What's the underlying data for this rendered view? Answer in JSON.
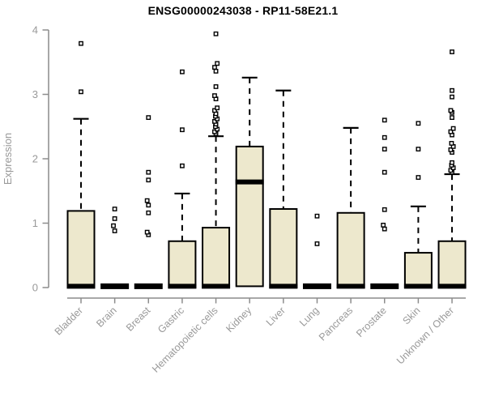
{
  "chart_data": {
    "type": "boxplot",
    "title": "ENSG00000243038 - RP11-58E21.1",
    "ylabel": "Expression",
    "xlabel": "",
    "ylim": [
      0,
      4
    ],
    "yticks": [
      0,
      1,
      2,
      3,
      4
    ],
    "grid": false,
    "legend": "none",
    "categories": [
      "Bladder",
      "Brain",
      "Breast",
      "Gastric",
      "Hematopoietic cells",
      "Kidney",
      "Liver",
      "Lung",
      "Pancreas",
      "Prostate",
      "Skin",
      "Unknown / Other"
    ],
    "boxes": [
      {
        "label": "Bladder",
        "q1": 0,
        "median": 0.02,
        "q3": 1.19,
        "whisker_low": 0,
        "whisker_high": 2.62,
        "outliers": [
          3.04,
          3.79
        ]
      },
      {
        "label": "Brain",
        "q1": 0,
        "median": 0.02,
        "q3": 0.03,
        "whisker_low": 0,
        "whisker_high": 0.03,
        "outliers": [
          0.88,
          0.96,
          1.07,
          1.22
        ]
      },
      {
        "label": "Breast",
        "q1": 0,
        "median": 0.02,
        "q3": 0.03,
        "whisker_low": 0,
        "whisker_high": 0.03,
        "outliers": [
          0.82,
          0.86,
          1.16,
          1.28,
          1.35,
          1.67,
          1.79,
          2.64
        ]
      },
      {
        "label": "Gastric",
        "q1": 0,
        "median": 0.02,
        "q3": 0.72,
        "whisker_low": 0,
        "whisker_high": 1.46,
        "outliers": [
          1.89,
          2.45,
          3.35
        ]
      },
      {
        "label": "Hematopoietic cells",
        "q1": 0,
        "median": 0.02,
        "q3": 0.93,
        "whisker_low": 0,
        "whisker_high": 2.35,
        "outliers": [
          2.39,
          2.42,
          2.46,
          2.5,
          2.54,
          2.58,
          2.62,
          2.66,
          2.7,
          2.75,
          2.79,
          2.93,
          2.98,
          3.12,
          3.36,
          3.42,
          3.48,
          3.94
        ]
      },
      {
        "label": "Kidney",
        "q1": 0.02,
        "median": 1.64,
        "q3": 2.19,
        "whisker_low": 0.02,
        "whisker_high": 3.26,
        "outliers": []
      },
      {
        "label": "Liver",
        "q1": 0,
        "median": 0.02,
        "q3": 1.22,
        "whisker_low": 0,
        "whisker_high": 3.06,
        "outliers": []
      },
      {
        "label": "Lung",
        "q1": 0,
        "median": 0.02,
        "q3": 0.03,
        "whisker_low": 0,
        "whisker_high": 0.03,
        "outliers": [
          0.68,
          1.11
        ]
      },
      {
        "label": "Pancreas",
        "q1": 0,
        "median": 0.02,
        "q3": 1.16,
        "whisker_low": 0,
        "whisker_high": 2.48,
        "outliers": []
      },
      {
        "label": "Prostate",
        "q1": 0,
        "median": 0.02,
        "q3": 0.03,
        "whisker_low": 0,
        "whisker_high": 0.03,
        "outliers": [
          0.91,
          0.97,
          1.21,
          1.79,
          2.15,
          2.33,
          2.6
        ]
      },
      {
        "label": "Skin",
        "q1": 0,
        "median": 0.02,
        "q3": 0.54,
        "whisker_low": 0,
        "whisker_high": 1.26,
        "outliers": [
          1.71,
          2.15,
          2.55
        ]
      },
      {
        "label": "Unknown / Other",
        "q1": 0,
        "median": 0.02,
        "q3": 0.72,
        "whisker_low": 0,
        "whisker_high": 1.76,
        "outliers": [
          1.79,
          1.82,
          1.86,
          1.9,
          1.94,
          2.1,
          2.14,
          2.19,
          2.24,
          2.37,
          2.42,
          2.47,
          2.64,
          2.72,
          2.75,
          2.96,
          3.06,
          3.66
        ]
      }
    ],
    "colors": {
      "box_fill": "#EDE8CD",
      "box_stroke": "#000000",
      "median": "#000000",
      "axis": "#8C8C8C",
      "tick_text": "#999999",
      "title_text": "#000000",
      "outlier_fill": "#FFFFFF"
    }
  }
}
